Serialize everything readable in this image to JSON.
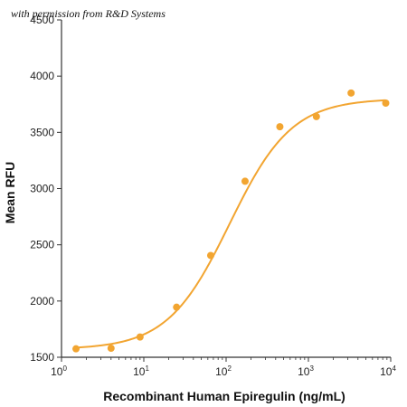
{
  "watermark": "with permission from R&D Systems",
  "chart_data": {
    "type": "scatter",
    "xlabel": "Recombinant Human Epiregulin (ng/mL)",
    "ylabel": "Mean RFU",
    "x_scale": "log",
    "xlim": [
      1,
      10000
    ],
    "ylim": [
      1500,
      4500
    ],
    "x_ticks": [
      1,
      10,
      100,
      1000,
      10000
    ],
    "x_tick_labels": [
      {
        "base": "10",
        "exp": "0"
      },
      {
        "base": "10",
        "exp": "1"
      },
      {
        "base": "10",
        "exp": "2"
      },
      {
        "base": "10",
        "exp": "3"
      },
      {
        "base": "10",
        "exp": "4"
      }
    ],
    "y_ticks": [
      1500,
      2000,
      2500,
      3000,
      3500,
      4000,
      4500
    ],
    "grid": false,
    "legend": false,
    "colors": {
      "series": "#F2A531",
      "axis": "#333333"
    },
    "series": [
      {
        "x": [
          1.5,
          4,
          9,
          25,
          65,
          170,
          450,
          1250,
          3300,
          8700
        ],
        "y": [
          1575,
          1580,
          1680,
          1945,
          2405,
          3065,
          3550,
          3640,
          3850,
          3760
        ],
        "fit": {
          "model": "four-parameter logistic",
          "bottom": 1570,
          "top": 3800,
          "ec50": 110,
          "hill": 1.15
        }
      }
    ]
  }
}
